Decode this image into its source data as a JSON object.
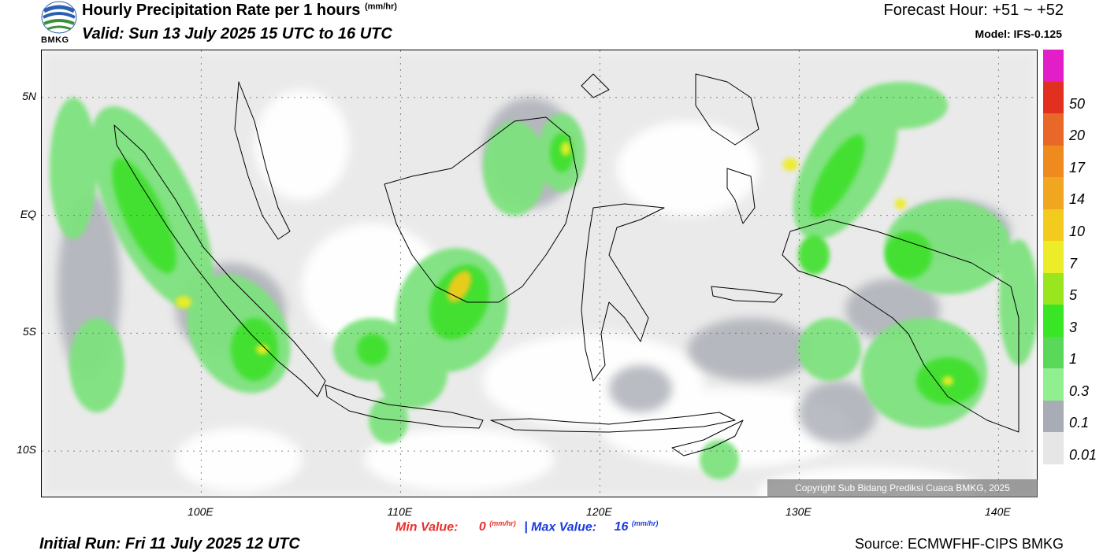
{
  "header": {
    "title": "Hourly Precipitation Rate per 1 hours",
    "title_unit": "(mm/hr)",
    "valid": "Valid: Sun 13 July 2025 15 UTC to 16 UTC",
    "forecast_hour": "Forecast Hour: +51 ~ +52",
    "model": "Model: IFS-0.125"
  },
  "logo": {
    "text": "BMKG",
    "icon": "bmkg-logo-icon"
  },
  "map": {
    "lat_labels": [
      {
        "label": "5N",
        "lat": 5
      },
      {
        "label": "EQ",
        "lat": 0
      },
      {
        "label": "5S",
        "lat": -5
      },
      {
        "label": "10S",
        "lat": -10
      }
    ],
    "lon_labels": [
      {
        "label": "100E",
        "lon": 100
      },
      {
        "label": "110E",
        "lon": 110
      },
      {
        "label": "120E",
        "lon": 120
      },
      {
        "label": "130E",
        "lon": 130
      },
      {
        "label": "140E",
        "lon": 140
      }
    ],
    "extent": {
      "lon_min": 92,
      "lon_max": 142,
      "lat_min": -12,
      "lat_max": 7
    }
  },
  "colorbar": {
    "levels": [
      "0.01",
      "0.1",
      "0.3",
      "1",
      "3",
      "5",
      "7",
      "10",
      "14",
      "17",
      "20",
      "50"
    ],
    "colors": [
      "#e6e6e6",
      "#a8acb4",
      "#90f090",
      "#5ad85a",
      "#39e626",
      "#9ae61e",
      "#ecec28",
      "#f2cb1e",
      "#f0a61e",
      "#ee8a1e",
      "#e8682a",
      "#e23020",
      "#e21ec8"
    ]
  },
  "copyright": "Copyright Sub Bidang Prediksi Cuaca BMKG, 2025",
  "stats": {
    "min_label": "Min Value:",
    "min_value": "0",
    "max_label": "Max Value:",
    "max_value": "16",
    "unit": "(mm/hr)",
    "separator": "|"
  },
  "initial_run": "Initial Run: Fri 11 July 2025 12 UTC",
  "source": "Source: ECMWFHF-CIPS BMKG"
}
